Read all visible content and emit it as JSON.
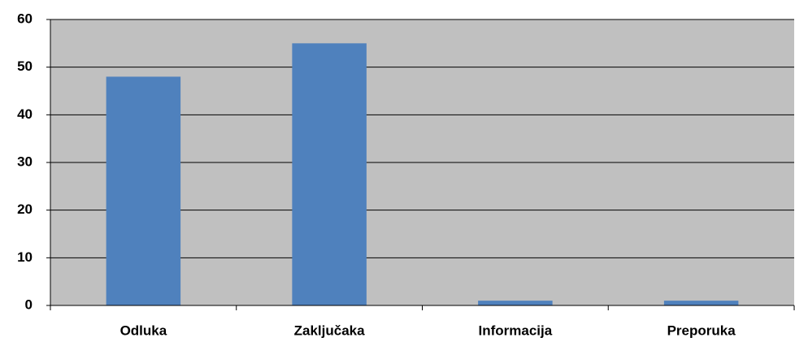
{
  "chart_data": {
    "type": "bar",
    "categories": [
      "Odluka",
      "Zaključaka",
      "Informacija",
      "Preporuka"
    ],
    "values": [
      48,
      55,
      1,
      1
    ],
    "color": "#4f81bd",
    "background": "#c0c0c0",
    "ylim": [
      0,
      60
    ],
    "yticks": [
      0,
      10,
      20,
      30,
      40,
      50,
      60
    ],
    "grid": true
  }
}
